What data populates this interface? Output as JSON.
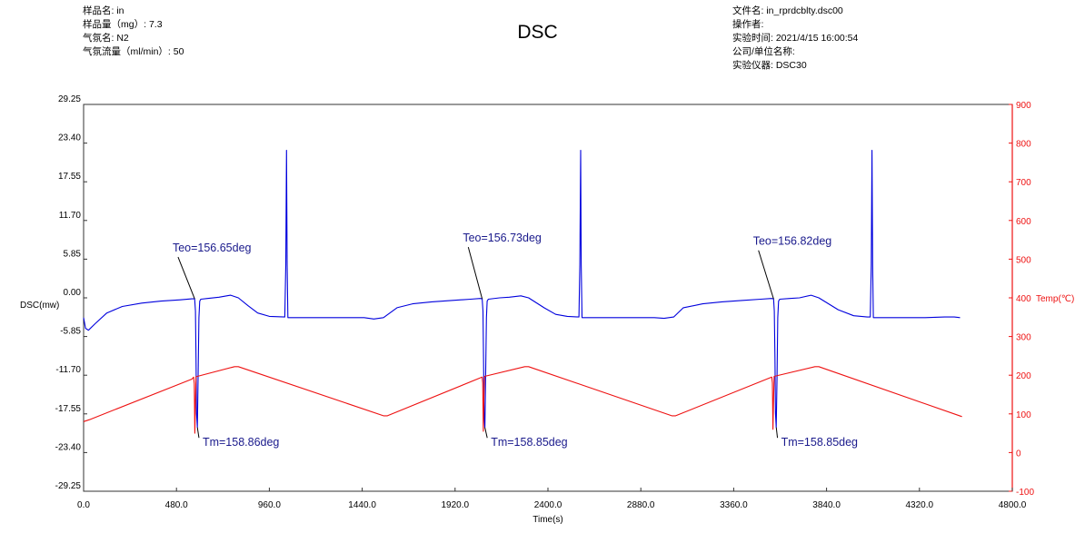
{
  "header": {
    "sample_name_label": "样品名:",
    "sample_name_value": "in",
    "sample_mass_label": "样品量（mg）:",
    "sample_mass_value": "7.3",
    "gas_name_label": "气氛名:",
    "gas_name_value": "N2",
    "gas_flow_label": "气氛流量（ml/min）:",
    "gas_flow_value": "50",
    "file_label": "文件名:",
    "file_value": "in_rprdcblty.dsc00",
    "operator_label": "操作者:",
    "operator_value": "",
    "time_label": "实验时间:",
    "time_value": "2021/4/15 16:00:54",
    "company_label": "公司/单位名称:",
    "company_value": "",
    "instrument_label": "实验仪器:",
    "instrument_value": "DSC30"
  },
  "chart_data": {
    "type": "line",
    "title": "DSC",
    "xlabel": "Time(s)",
    "ylabel_left": "DSC(mw)",
    "ylabel_right": "Temp(℃)",
    "xlim": [
      0,
      4800
    ],
    "ylim_left": [
      -29.25,
      29.25
    ],
    "ylim_right": [
      -100,
      900
    ],
    "x_ticks": [
      "0.0",
      "480.0",
      "960.0",
      "1440.0",
      "1920.0",
      "2400.0",
      "2880.0",
      "3360.0",
      "3840.0",
      "4320.0",
      "4800.0"
    ],
    "y_left_ticks": [
      "29.25",
      "23.40",
      "17.55",
      "11.70",
      "5.85",
      "0.00",
      "-5.85",
      "-11.70",
      "-17.55",
      "-23.40",
      "-29.25"
    ],
    "y_right_ticks": [
      "900",
      "800",
      "700",
      "600",
      "500",
      "400",
      "300",
      "200",
      "100",
      "0",
      "-100"
    ],
    "grid": false,
    "colors": {
      "dsc": "#0000dd",
      "temp": "#ee1111",
      "annotation": "#1a1a8c",
      "right_axis": "#ee1111"
    },
    "series": [
      {
        "name": "DSC(mw)",
        "axis": "left",
        "points": [
          [
            0,
            -3.0
          ],
          [
            10,
            -4.6
          ],
          [
            25,
            -4.9
          ],
          [
            60,
            -3.9
          ],
          [
            120,
            -2.3
          ],
          [
            200,
            -1.3
          ],
          [
            300,
            -0.8
          ],
          [
            400,
            -0.5
          ],
          [
            500,
            -0.3
          ],
          [
            560,
            -0.15
          ],
          [
            574,
            -0.15
          ],
          [
            578,
            -2.0
          ],
          [
            581,
            -9.0
          ],
          [
            584,
            -17.5
          ],
          [
            588,
            -19.6
          ],
          [
            592,
            -12.0
          ],
          [
            596,
            -3.0
          ],
          [
            600,
            -0.5
          ],
          [
            606,
            -0.2
          ],
          [
            640,
            -0.1
          ],
          [
            700,
            0.1
          ],
          [
            760,
            0.4
          ],
          [
            800,
            0.0
          ],
          [
            850,
            -1.2
          ],
          [
            900,
            -2.3
          ],
          [
            960,
            -2.8
          ],
          [
            1040,
            -2.9
          ],
          [
            1045,
            5.0
          ],
          [
            1049,
            22.3
          ],
          [
            1052,
            5.0
          ],
          [
            1056,
            -3.0
          ],
          [
            1150,
            -3.0
          ],
          [
            1300,
            -3.0
          ],
          [
            1450,
            -3.0
          ],
          [
            1500,
            -3.2
          ],
          [
            1550,
            -3.0
          ],
          [
            1620,
            -1.5
          ],
          [
            1700,
            -0.9
          ],
          [
            1800,
            -0.6
          ],
          [
            1900,
            -0.4
          ],
          [
            2000,
            -0.2
          ],
          [
            2050,
            -0.1
          ],
          [
            2060,
            -0.15
          ],
          [
            2064,
            -2.0
          ],
          [
            2067,
            -9.0
          ],
          [
            2070,
            -17.5
          ],
          [
            2074,
            -19.6
          ],
          [
            2078,
            -12.0
          ],
          [
            2082,
            -3.0
          ],
          [
            2086,
            -0.5
          ],
          [
            2092,
            -0.2
          ],
          [
            2150,
            0.0
          ],
          [
            2200,
            0.1
          ],
          [
            2260,
            0.3
          ],
          [
            2300,
            0.0
          ],
          [
            2380,
            -1.5
          ],
          [
            2440,
            -2.5
          ],
          [
            2500,
            -2.8
          ],
          [
            2560,
            -2.9
          ],
          [
            2565,
            5.0
          ],
          [
            2569,
            22.3
          ],
          [
            2572,
            5.0
          ],
          [
            2576,
            -3.0
          ],
          [
            2700,
            -3.0
          ],
          [
            2850,
            -3.0
          ],
          [
            2950,
            -3.0
          ],
          [
            3000,
            -3.1
          ],
          [
            3050,
            -2.9
          ],
          [
            3100,
            -1.5
          ],
          [
            3200,
            -0.9
          ],
          [
            3300,
            -0.6
          ],
          [
            3400,
            -0.4
          ],
          [
            3500,
            -0.2
          ],
          [
            3555,
            -0.1
          ],
          [
            3566,
            -0.15
          ],
          [
            3570,
            -2.0
          ],
          [
            3573,
            -9.0
          ],
          [
            3576,
            -17.5
          ],
          [
            3580,
            -19.6
          ],
          [
            3584,
            -12.0
          ],
          [
            3588,
            -3.0
          ],
          [
            3592,
            -0.5
          ],
          [
            3598,
            -0.2
          ],
          [
            3650,
            -0.1
          ],
          [
            3700,
            0.0
          ],
          [
            3760,
            0.4
          ],
          [
            3800,
            0.0
          ],
          [
            3900,
            -1.8
          ],
          [
            3980,
            -2.7
          ],
          [
            4050,
            -2.9
          ],
          [
            4066,
            -2.9
          ],
          [
            4071,
            5.0
          ],
          [
            4075,
            22.3
          ],
          [
            4078,
            5.0
          ],
          [
            4082,
            -3.0
          ],
          [
            4200,
            -3.0
          ],
          [
            4350,
            -3.0
          ],
          [
            4450,
            -2.9
          ],
          [
            4500,
            -2.9
          ],
          [
            4530,
            -3.0
          ]
        ]
      },
      {
        "name": "Temp(℃)",
        "axis": "right",
        "points": [
          [
            0,
            80
          ],
          [
            30,
            85
          ],
          [
            560,
            190
          ],
          [
            569,
            195
          ],
          [
            572,
            178
          ],
          [
            575,
            50
          ],
          [
            578,
            135
          ],
          [
            581,
            196
          ],
          [
            780,
            222
          ],
          [
            800,
            222
          ],
          [
            1550,
            95
          ],
          [
            1570,
            95
          ],
          [
            2060,
            195
          ],
          [
            2063,
            180
          ],
          [
            2066,
            55
          ],
          [
            2069,
            140
          ],
          [
            2072,
            197
          ],
          [
            2280,
            222
          ],
          [
            2300,
            222
          ],
          [
            3040,
            95
          ],
          [
            3060,
            95
          ],
          [
            3557,
            195
          ],
          [
            3560,
            180
          ],
          [
            3563,
            60
          ],
          [
            3566,
            140
          ],
          [
            3569,
            197
          ],
          [
            3780,
            222
          ],
          [
            3800,
            222
          ],
          [
            4540,
            93
          ]
        ]
      }
    ],
    "annotations": [
      {
        "text": "Teo=156.65deg",
        "x": 574,
        "y": -0.15,
        "label_x": 460,
        "label_y": 7.0
      },
      {
        "text": "Tm=158.86deg",
        "x": 588,
        "y": -19.6,
        "label_x": 615,
        "label_y": -22.0
      },
      {
        "text": "Teo=156.73deg",
        "x": 2060,
        "y": -0.15,
        "label_x": 1960,
        "label_y": 8.5
      },
      {
        "text": "Tm=158.85deg",
        "x": 2074,
        "y": -19.6,
        "label_x": 2105,
        "label_y": -22.0
      },
      {
        "text": "Teo=156.82deg",
        "x": 3566,
        "y": -0.15,
        "label_x": 3460,
        "label_y": 8.0
      },
      {
        "text": "Tm=158.85deg",
        "x": 3580,
        "y": -19.6,
        "label_x": 3605,
        "label_y": -22.0
      }
    ]
  }
}
